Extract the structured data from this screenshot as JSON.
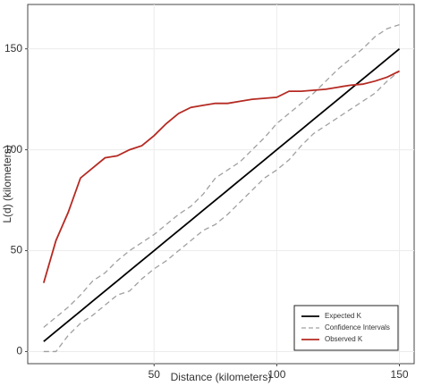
{
  "chart_data": {
    "type": "line",
    "x_label": "Distance (kilometers)",
    "y_label": "L(d) (kilometers)",
    "x": [
      5,
      10,
      15,
      20,
      25,
      30,
      35,
      40,
      45,
      50,
      55,
      60,
      65,
      70,
      75,
      80,
      85,
      90,
      95,
      100,
      105,
      110,
      115,
      120,
      125,
      130,
      135,
      140,
      145,
      150
    ],
    "series": [
      {
        "name": "Expected K",
        "color": "#000000",
        "dash": false,
        "values": [
          5,
          10,
          15,
          20,
          25,
          30,
          35,
          40,
          45,
          50,
          55,
          60,
          65,
          70,
          75,
          80,
          85,
          90,
          95,
          100,
          105,
          110,
          115,
          120,
          125,
          130,
          135,
          140,
          145,
          150
        ]
      },
      {
        "name": "Confidence Intervals",
        "color": "#a0a0a0",
        "dash": true,
        "values": [
          12,
          17,
          22,
          28,
          35,
          39,
          45,
          50,
          54,
          58,
          63,
          68,
          72,
          78,
          86,
          90,
          94,
          100,
          106,
          113,
          118,
          123,
          128,
          134,
          140,
          145,
          150,
          156,
          160,
          162
        ],
        "lower": [
          0,
          0,
          8,
          14,
          18,
          23,
          28,
          30,
          36,
          41,
          45,
          50,
          55,
          60,
          63,
          68,
          74,
          80,
          86,
          90,
          95,
          102,
          108,
          112,
          116,
          120,
          124,
          128,
          134,
          139
        ]
      },
      {
        "name": "Observed K",
        "color": "#b52a22",
        "dash": false,
        "values": [
          34,
          55,
          69,
          86,
          91,
          96,
          97,
          100,
          102,
          107,
          113,
          118,
          121,
          122,
          123,
          123,
          124,
          125,
          125.5,
          126,
          129,
          129,
          129.5,
          130,
          131,
          132,
          132.5,
          134,
          136,
          139
        ]
      }
    ],
    "xlim": [
      -1.5,
      156
    ],
    "ylim": [
      -6,
      172
    ],
    "xticks": [
      50,
      100,
      150
    ],
    "yticks": [
      0,
      50,
      100,
      150
    ],
    "grid": true,
    "legend": "lower right"
  }
}
